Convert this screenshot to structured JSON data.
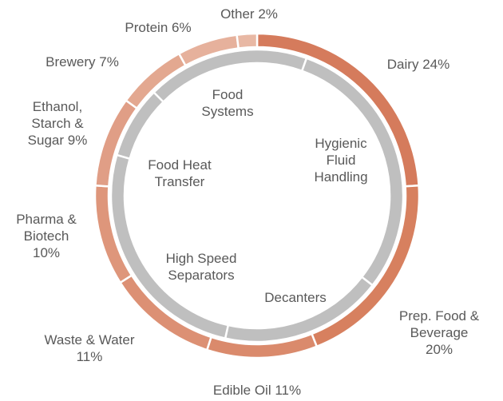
{
  "chart_data": {
    "type": "donut",
    "categories": [
      "Dairy",
      "Prep. Food & Beverage",
      "Edible Oil",
      "Waste & Water",
      "Pharma & Biotech",
      "Ethanol, Starch & Sugar",
      "Brewery",
      "Protein",
      "Other"
    ],
    "values": [
      24,
      20,
      11,
      11,
      10,
      9,
      7,
      6,
      2
    ],
    "value_labels": [
      "24%",
      "20%",
      "11%",
      "11%",
      "10%",
      "9%",
      "7%",
      "6%",
      "2%"
    ],
    "colors": [
      "#d57b5c",
      "#d7805f",
      "#da8a6c",
      "#dc9074",
      "#de967b",
      "#e09e86",
      "#e3a890",
      "#e6b19c",
      "#e8b8a4"
    ],
    "inner": {
      "categories": [
        "Food Systems",
        "Hygienic Fluid Handling",
        "Decanters",
        "High Speed Separators",
        "Food Heat Transfer"
      ],
      "values": [
        18,
        30,
        18,
        26,
        8
      ],
      "color": "#bfbfbf"
    }
  }
}
